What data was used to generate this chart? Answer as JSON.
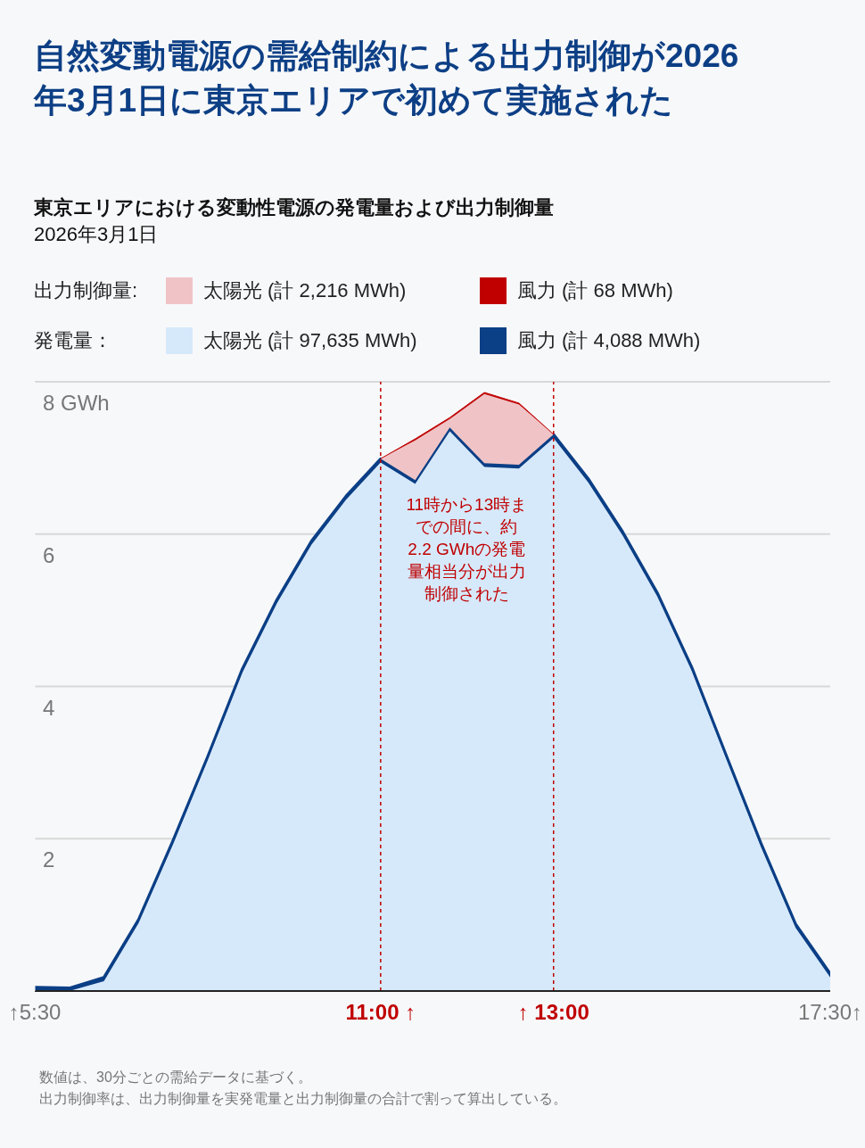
{
  "chart_data": {
    "type": "area",
    "stacked": true,
    "title": "自然変動電源の需給制約による出力制御が2026年3月1日に東京エリアで初めて実施された",
    "subtitle": "東京エリアにおける変動性電源の発電量および出力制御量\n2026年3月1日",
    "categories": [
      "↑5:30",
      null,
      null,
      null,
      null,
      null,
      null,
      null,
      null,
      null,
      "11:00 ↑",
      null,
      null,
      null,
      null,
      "↑ 13:00",
      null,
      null,
      null,
      null,
      null,
      null,
      null,
      "17:30↑"
    ],
    "series": [
      {
        "name": "太陽光 (計 97,635 MWh)",
        "color": "#d6e9fb",
        "values": [
          0.0,
          0.0,
          0.13,
          0.89,
          1.93,
          3.03,
          4.18,
          5.09,
          5.86,
          6.45,
          6.94,
          6.66,
          7.35,
          6.88,
          6.86,
          7.26,
          6.68,
          5.98,
          5.18,
          4.2,
          3.04,
          1.89,
          0.83,
          0.18
        ]
      },
      {
        "name": "風力 (計 4,088 MWh)",
        "color": "#0b3f86",
        "values": [
          0.05,
          0.04,
          0.05,
          0.05,
          0.05,
          0.05,
          0.05,
          0.05,
          0.05,
          0.05,
          0.05,
          0.05,
          0.05,
          0.05,
          0.05,
          0.05,
          0.05,
          0.05,
          0.05,
          0.05,
          0.05,
          0.05,
          0.05,
          0.05
        ]
      },
      {
        "name": "太陽光 (計 2,216 MWh)",
        "color": "#f0c4c6",
        "values": [
          null,
          null,
          null,
          null,
          null,
          null,
          null,
          null,
          null,
          null,
          0,
          0.52,
          0.11,
          0.91,
          0.79,
          0,
          null,
          null,
          null,
          null,
          null,
          null,
          null,
          null
        ]
      },
      {
        "name": "風力 (計 68 MWh)",
        "color": "#c00000",
        "values": [
          null,
          null,
          null,
          null,
          null,
          null,
          null,
          null,
          null,
          null,
          0,
          0.02,
          0.02,
          0.02,
          0.02,
          0,
          null,
          null,
          null,
          null,
          null,
          null,
          null,
          null
        ]
      }
    ],
    "ylim": [
      0,
      8
    ],
    "yticks": [
      {
        "value": 0,
        "label": null
      },
      2,
      4,
      6,
      {
        "value": 8,
        "label": "8 GWh"
      }
    ],
    "grid": "y",
    "legend": "top",
    "ref_lines": [
      {
        "axis": "x",
        "value": "11:00 ↑",
        "color": "#c00000",
        "line_style": "dashed"
      },
      {
        "axis": "x",
        "value": "↑ 13:00",
        "color": "#c00000",
        "line_style": "dashed"
      }
    ],
    "annotations": [
      "出力制御量:",
      "発電量：",
      "11時から13時までの間に、約2.2 GWhの発電量相当分が出力制御された",
      "数値は、30分ごとの需給データに基づく。",
      "出力制御率は、出力制御量を実発電量と出力制御量の合計で割って算出している。"
    ]
  }
}
